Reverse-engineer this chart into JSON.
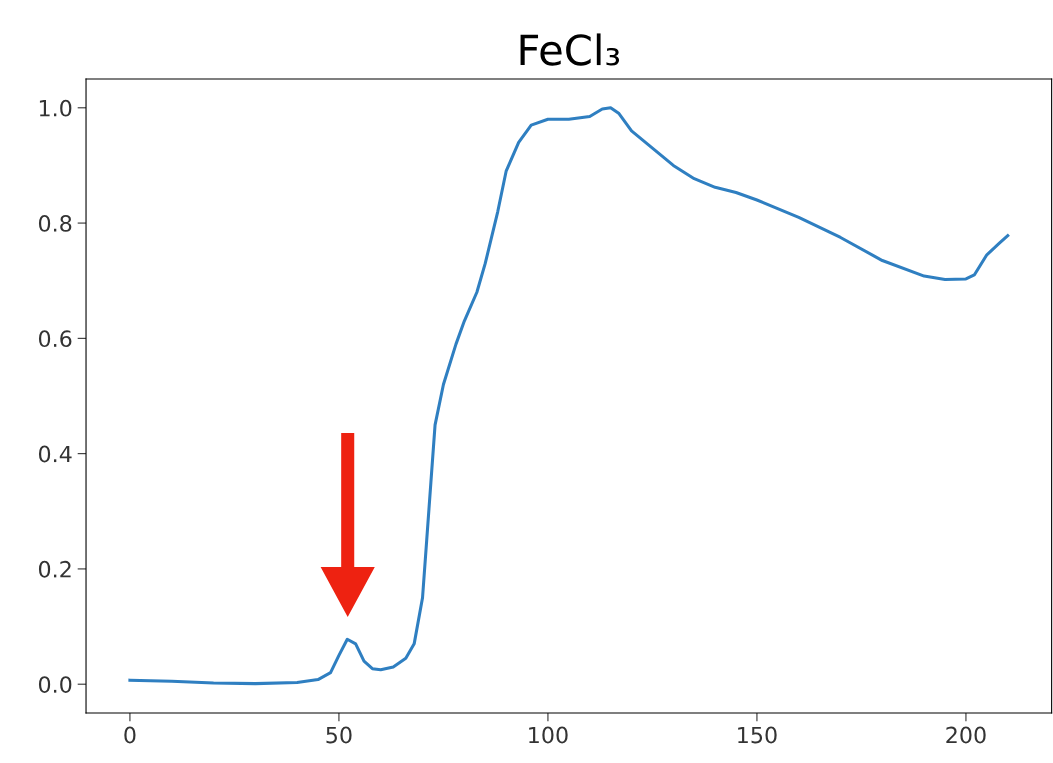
{
  "chart_data": {
    "type": "line",
    "title": "FeCl₃",
    "xlim": [
      -10.5,
      220.5
    ],
    "ylim": [
      -0.05,
      1.05
    ],
    "xticks": [
      0,
      50,
      100,
      150,
      200
    ],
    "yticks": [
      {
        "value": 0,
        "label": "0.0"
      },
      {
        "value": 0.2,
        "label": "0.2"
      },
      {
        "value": 0.4,
        "label": "0.4"
      },
      {
        "value": 0.6,
        "label": "0.6"
      },
      {
        "value": 0.8,
        "label": "0.8"
      },
      {
        "value": 1.0,
        "label": "1.0"
      }
    ],
    "grid": false,
    "legend": false,
    "marker": "none",
    "line_style": "solid",
    "series": [
      {
        "color": "#2f7fc1",
        "x": [
          0,
          10,
          20,
          30,
          40,
          45,
          48,
          50,
          52,
          54,
          56,
          58,
          60,
          63,
          66,
          68,
          70,
          71,
          72,
          73,
          75,
          78,
          80,
          83,
          85,
          88,
          90,
          93,
          96,
          100,
          105,
          110,
          113,
          115,
          117,
          120,
          125,
          130,
          135,
          140,
          145,
          150,
          160,
          170,
          180,
          190,
          195,
          200,
          202,
          205,
          208,
          210
        ],
        "values": [
          0.007,
          0.005,
          0.002,
          0.001,
          0.003,
          0.008,
          0.02,
          0.05,
          0.078,
          0.07,
          0.04,
          0.027,
          0.025,
          0.03,
          0.045,
          0.07,
          0.15,
          0.25,
          0.35,
          0.45,
          0.52,
          0.59,
          0.63,
          0.68,
          0.73,
          0.82,
          0.89,
          0.94,
          0.97,
          0.98,
          0.98,
          0.985,
          0.998,
          1.0,
          0.99,
          0.96,
          0.93,
          0.9,
          0.877,
          0.862,
          0.853,
          0.84,
          0.81,
          0.775,
          0.735,
          0.708,
          0.702,
          0.703,
          0.71,
          0.745,
          0.765,
          0.778
        ]
      }
    ]
  }
}
